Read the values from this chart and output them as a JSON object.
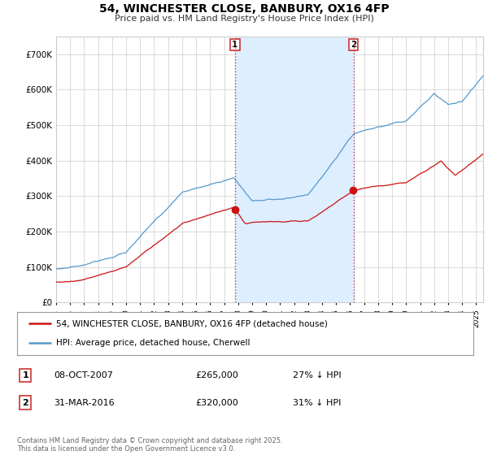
{
  "title": "54, WINCHESTER CLOSE, BANBURY, OX16 4FP",
  "subtitle": "Price paid vs. HM Land Registry's House Price Index (HPI)",
  "background_color": "#ffffff",
  "plot_bg_color": "#ffffff",
  "shade_color": "#ddeeff",
  "grid_color": "#cccccc",
  "ylim": [
    0,
    750000
  ],
  "yticks": [
    0,
    100000,
    200000,
    300000,
    400000,
    500000,
    600000,
    700000
  ],
  "ytick_labels": [
    "£0",
    "£100K",
    "£200K",
    "£300K",
    "£400K",
    "£500K",
    "£600K",
    "£700K"
  ],
  "hpi_color": "#5599cc",
  "price_color": "#cc1111",
  "vline_color": "#cc3333",
  "purchase1_date_num": 2007.77,
  "purchase1_label": "1",
  "purchase1_date_str": "08-OCT-2007",
  "purchase1_price": "£265,000",
  "purchase1_price_val": 265000,
  "purchase1_hpi_pct": "27% ↓ HPI",
  "purchase2_date_num": 2016.25,
  "purchase2_label": "2",
  "purchase2_date_str": "31-MAR-2016",
  "purchase2_price": "£320,000",
  "purchase2_price_val": 320000,
  "purchase2_hpi_pct": "31% ↓ HPI",
  "legend_label_red": "54, WINCHESTER CLOSE, BANBURY, OX16 4FP (detached house)",
  "legend_label_blue": "HPI: Average price, detached house, Cherwell",
  "footer": "Contains HM Land Registry data © Crown copyright and database right 2025.\nThis data is licensed under the Open Government Licence v3.0.",
  "xmin": 1995.0,
  "xmax": 2025.5
}
